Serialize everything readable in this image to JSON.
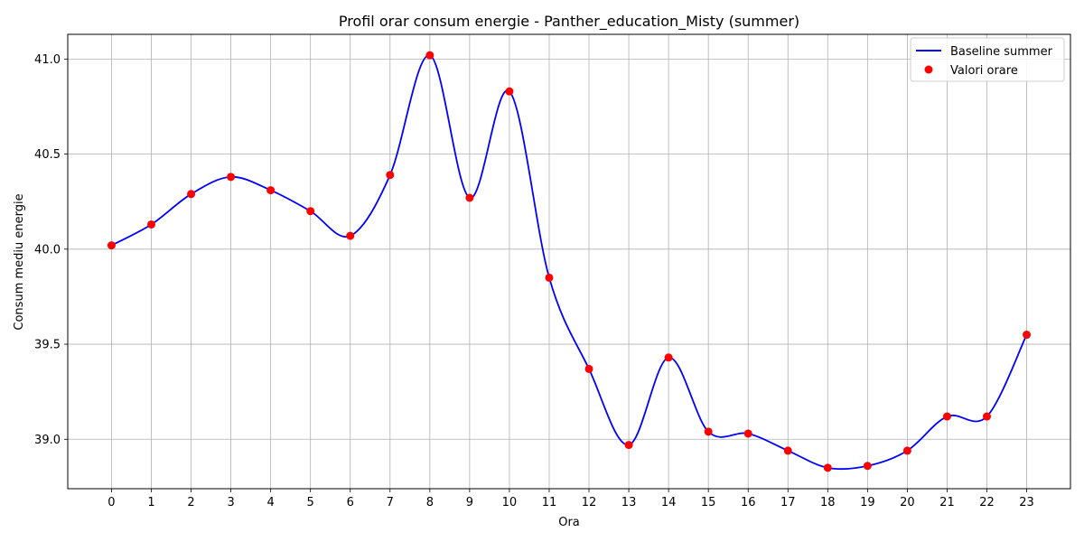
{
  "chart_data": {
    "type": "line",
    "title": "Profil orar consum energie - Panther_education_Misty (summer)",
    "xlabel": "Ora",
    "ylabel": "Consum mediu energie",
    "x": [
      0,
      1,
      2,
      3,
      4,
      5,
      6,
      7,
      8,
      9,
      10,
      11,
      12,
      13,
      14,
      15,
      16,
      17,
      18,
      19,
      20,
      21,
      22,
      23
    ],
    "x_tick_labels": [
      "0",
      "1",
      "2",
      "3",
      "4",
      "5",
      "6",
      "7",
      "8",
      "9",
      "10",
      "11",
      "12",
      "13",
      "14",
      "15",
      "16",
      "17",
      "18",
      "19",
      "20",
      "21",
      "22",
      "23"
    ],
    "y_ticks": [
      39.0,
      39.5,
      40.0,
      40.5,
      41.0
    ],
    "y_tick_labels": [
      "39.0",
      "39.5",
      "40.0",
      "40.5",
      "41.0"
    ],
    "xlim": [
      -1.1,
      24.1
    ],
    "ylim": [
      38.74,
      41.13
    ],
    "grid": true,
    "legend_position": "top-right",
    "series": [
      {
        "name": "Baseline summer",
        "kind": "smooth-line",
        "color": "#0000ff",
        "values": [
          40.02,
          40.13,
          40.29,
          40.38,
          40.31,
          40.2,
          40.07,
          40.39,
          41.02,
          40.27,
          40.83,
          39.85,
          39.37,
          38.97,
          39.43,
          39.04,
          39.03,
          38.94,
          38.85,
          38.86,
          38.94,
          39.12,
          39.12,
          39.55
        ]
      },
      {
        "name": "Valori orare",
        "kind": "scatter",
        "color": "#ff0000",
        "values": [
          40.02,
          40.13,
          40.29,
          40.38,
          40.31,
          40.2,
          40.07,
          40.39,
          41.02,
          40.27,
          40.83,
          39.85,
          39.37,
          38.97,
          39.43,
          39.04,
          39.03,
          38.94,
          38.85,
          38.86,
          38.94,
          39.12,
          39.12,
          39.55
        ]
      }
    ]
  }
}
